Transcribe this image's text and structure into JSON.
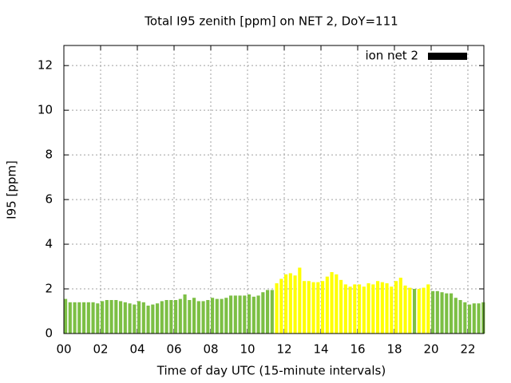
{
  "chart_data": {
    "type": "bar",
    "title": "Total I95 zenith [ppm] on NET 2, DoY=111",
    "xlabel": "Time of day UTC (15-minute intervals)",
    "ylabel": "I95 [ppm]",
    "xlim": [
      0,
      22.87
    ],
    "ylim": [
      0,
      12.9
    ],
    "xticks": [
      {
        "value": 0,
        "label": "00"
      },
      {
        "value": 2,
        "label": "02"
      },
      {
        "value": 4,
        "label": "04"
      },
      {
        "value": 6,
        "label": "06"
      },
      {
        "value": 8,
        "label": "08"
      },
      10,
      12,
      14,
      16,
      18,
      20,
      22
    ],
    "yticks": [
      0,
      2,
      4,
      6,
      8,
      10,
      12
    ],
    "grid": true,
    "legend": "top right",
    "x": [
      0,
      0.25,
      0.5,
      0.75,
      1,
      1.25,
      1.5,
      1.75,
      2,
      2.25,
      2.5,
      2.75,
      3,
      3.25,
      3.5,
      3.75,
      4,
      4.25,
      4.5,
      4.75,
      5,
      5.25,
      5.5,
      5.75,
      6,
      6.25,
      6.5,
      6.75,
      7,
      7.25,
      7.5,
      7.75,
      8,
      8.25,
      8.5,
      8.75,
      9,
      9.25,
      9.5,
      9.75,
      10,
      10.25,
      10.5,
      10.75,
      11,
      11.25,
      11.5,
      11.75,
      12,
      12.25,
      12.5,
      12.75,
      13,
      13.25,
      13.5,
      13.75,
      14,
      14.25,
      14.5,
      14.75,
      15,
      15.25,
      15.5,
      15.75,
      16,
      16.25,
      16.5,
      16.75,
      17,
      17.25,
      17.5,
      17.75,
      18,
      18.25,
      18.5,
      18.75,
      19,
      19.25,
      19.5,
      19.75,
      20,
      20.25,
      20.5,
      20.75,
      21,
      21.25,
      21.5,
      21.75,
      22,
      22.25,
      22.5,
      22.75
    ],
    "series": [
      {
        "name": "ion net 2",
        "color": "#000000",
        "values": [
          1.55,
          1.4,
          1.4,
          1.4,
          1.4,
          1.4,
          1.4,
          1.35,
          1.45,
          1.5,
          1.5,
          1.5,
          1.45,
          1.4,
          1.35,
          1.3,
          1.45,
          1.4,
          1.25,
          1.3,
          1.35,
          1.45,
          1.5,
          1.5,
          1.5,
          1.55,
          1.75,
          1.5,
          1.6,
          1.45,
          1.45,
          1.5,
          1.6,
          1.55,
          1.55,
          1.6,
          1.7,
          1.7,
          1.7,
          1.7,
          1.75,
          1.65,
          1.7,
          1.85,
          1.95,
          1.95,
          2.25,
          2.45,
          2.65,
          2.7,
          2.6,
          2.95,
          2.35,
          2.35,
          2.3,
          2.3,
          2.35,
          2.55,
          2.75,
          2.65,
          2.4,
          2.2,
          2.1,
          2.2,
          2.2,
          2.1,
          2.25,
          2.2,
          2.35,
          2.3,
          2.25,
          2.1,
          2.35,
          2.5,
          2.15,
          2.05,
          2.0,
          2.0,
          2.05,
          2.2,
          1.9,
          1.9,
          1.85,
          1.8,
          1.8,
          1.6,
          1.5,
          1.4,
          1.3,
          1.35,
          1.35,
          1.4
        ],
        "colors": [
          "#7cbf44",
          "#7cbf44",
          "#7cbf44",
          "#7cbf44",
          "#7cbf44",
          "#7cbf44",
          "#7cbf44",
          "#7cbf44",
          "#7cbf44",
          "#7cbf44",
          "#7cbf44",
          "#7cbf44",
          "#7cbf44",
          "#7cbf44",
          "#7cbf44",
          "#7cbf44",
          "#7cbf44",
          "#7cbf44",
          "#7cbf44",
          "#7cbf44",
          "#7cbf44",
          "#7cbf44",
          "#7cbf44",
          "#7cbf44",
          "#7cbf44",
          "#7cbf44",
          "#7cbf44",
          "#7cbf44",
          "#7cbf44",
          "#7cbf44",
          "#7cbf44",
          "#7cbf44",
          "#7cbf44",
          "#7cbf44",
          "#7cbf44",
          "#7cbf44",
          "#7cbf44",
          "#7cbf44",
          "#7cbf44",
          "#7cbf44",
          "#7cbf44",
          "#7cbf44",
          "#7cbf44",
          "#7cbf44",
          "#7cbf44",
          "#7cbf44",
          "#ffff00",
          "#ffff00",
          "#ffff00",
          "#ffff00",
          "#ffff00",
          "#ffff00",
          "#ffff00",
          "#ffff00",
          "#ffff00",
          "#ffff00",
          "#ffff00",
          "#ffff00",
          "#ffff00",
          "#ffff00",
          "#ffff00",
          "#ffff00",
          "#ffff00",
          "#ffff00",
          "#ffff00",
          "#ffff00",
          "#ffff00",
          "#ffff00",
          "#ffff00",
          "#ffff00",
          "#ffff00",
          "#ffff00",
          "#ffff00",
          "#ffff00",
          "#ffff00",
          "#ffff00",
          "#7cbf44",
          "#ffff00",
          "#ffff00",
          "#ffff00",
          "#7cbf44",
          "#7cbf44",
          "#7cbf44",
          "#7cbf44",
          "#7cbf44",
          "#7cbf44",
          "#7cbf44",
          "#7cbf44",
          "#7cbf44",
          "#7cbf44",
          "#7cbf44",
          "#7cbf44"
        ]
      }
    ]
  }
}
